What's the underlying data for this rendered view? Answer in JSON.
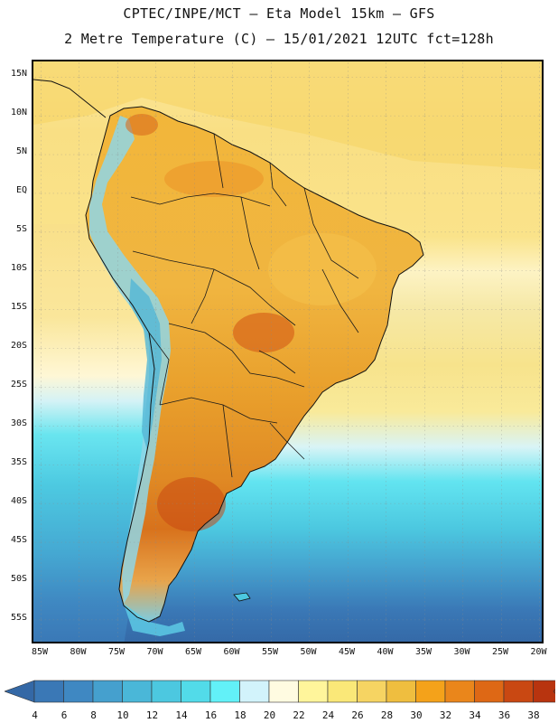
{
  "title": {
    "line1": "CPTEC/INPE/MCT –  Eta Model 15km – GFS",
    "line2": "2 Metre Temperature (C) – 15/01/2021 12UTC fct=128h"
  },
  "map": {
    "lat_labels": [
      "15N",
      "10N",
      "5N",
      "EQ",
      "5S",
      "10S",
      "15S",
      "20S",
      "25S",
      "30S",
      "35S",
      "40S",
      "45S",
      "50S",
      "55S"
    ],
    "lon_labels": [
      "85W",
      "80W",
      "75W",
      "70W",
      "65W",
      "60W",
      "55W",
      "50W",
      "45W",
      "40W",
      "35W",
      "30W",
      "25W",
      "20W"
    ],
    "extent": {
      "lon_min": -85,
      "lon_max": -20,
      "lat_min": -58,
      "lat_max": 17
    }
  },
  "colorbar": {
    "values": [
      "4",
      "6",
      "8",
      "10",
      "12",
      "14",
      "16",
      "18",
      "20",
      "22",
      "24",
      "26",
      "28",
      "30",
      "32",
      "34",
      "36",
      "38"
    ],
    "colors": [
      "#3a78b6",
      "#3f88c2",
      "#45a0ce",
      "#4ab7d8",
      "#4cc8e0",
      "#52dbe9",
      "#62f1f8",
      "#d2f3fb",
      "#fffbe1",
      "#fff59b",
      "#fae878",
      "#f6d462",
      "#efbe3f",
      "#f4a21a",
      "#ea861b",
      "#de6815",
      "#c94812",
      "#b8340f"
    ],
    "low_end_color": "#3468a6",
    "high_end_color": "#a83010"
  }
}
